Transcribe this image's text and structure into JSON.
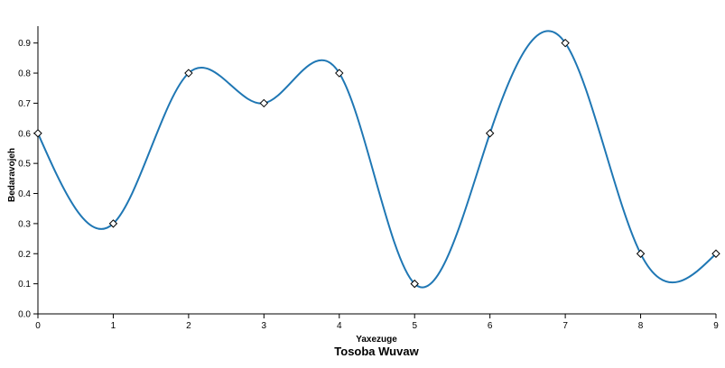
{
  "chart_data": {
    "type": "line",
    "title": "Tosoba Wuvaw",
    "xlabel": "Yaxezuge",
    "ylabel": "Bedaravojeh",
    "xlim": [
      0,
      9
    ],
    "ylim": [
      0,
      0.95
    ],
    "x_ticks": [
      "0",
      "1",
      "2",
      "3",
      "4",
      "5",
      "6",
      "7",
      "8",
      "9"
    ],
    "y_ticks": [
      "0.0",
      "0.1",
      "0.2",
      "0.3",
      "0.4",
      "0.5",
      "0.6",
      "0.7",
      "0.8",
      "0.9"
    ],
    "grid": false,
    "interpolation": "smooth",
    "marker": "diamond",
    "series": [
      {
        "color": "#1f77b4",
        "x": [
          0,
          1,
          2,
          3,
          4,
          5,
          6,
          7,
          8,
          9
        ],
        "y": [
          0.6,
          0.3,
          0.8,
          0.7,
          0.8,
          0.1,
          0.6,
          0.9,
          0.2,
          0.2
        ]
      }
    ]
  }
}
